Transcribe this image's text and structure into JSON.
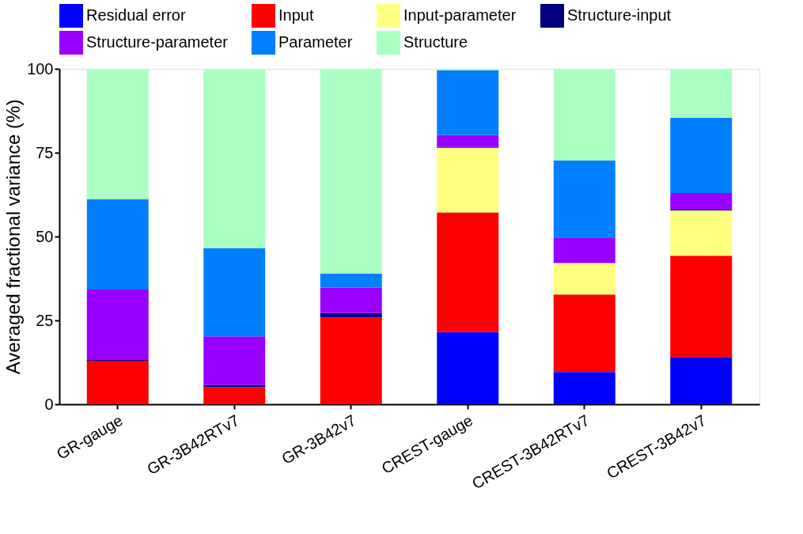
{
  "chart_data": {
    "type": "bar",
    "stacked": true,
    "ylabel": "Averaged fractional variance (%)",
    "categories": [
      "GR-gauge",
      "GR-3B42RTv7",
      "GR-3B42v7",
      "CREST-gauge",
      "CREST-3B42RTv7",
      "CREST-3B42v7"
    ],
    "series": [
      {
        "name": "Residual error",
        "color": "#0000ff",
        "values": [
          0,
          0,
          0,
          21.5,
          9.6,
          14.1
        ]
      },
      {
        "name": "Input",
        "color": "#ff0000",
        "values": [
          13.0,
          5.1,
          25.9,
          35.7,
          23.1,
          30.2
        ]
      },
      {
        "name": "Input-parameter",
        "color": "#ffff80",
        "values": [
          0,
          0,
          0,
          19.3,
          9.4,
          13.5
        ]
      },
      {
        "name": "Structure-input",
        "color": "#000080",
        "values": [
          0.4,
          0.6,
          1.3,
          0.2,
          0,
          0.2
        ]
      },
      {
        "name": "Structure-parameter",
        "color": "#9900ff",
        "values": [
          20.8,
          14.5,
          7.6,
          3.6,
          7.6,
          5.0
        ]
      },
      {
        "name": "Parameter",
        "color": "#0080ff",
        "values": [
          26.9,
          26.4,
          4.2,
          19.2,
          23.0,
          22.4
        ]
      },
      {
        "name": "Structure",
        "color": "#aaffc3",
        "values": [
          38.9,
          53.4,
          61.0,
          0.5,
          27.3,
          14.6
        ]
      }
    ],
    "ylim": [
      0,
      100
    ],
    "yticks": [
      0,
      25,
      50,
      75,
      100
    ],
    "grid": false,
    "legend": "top"
  }
}
